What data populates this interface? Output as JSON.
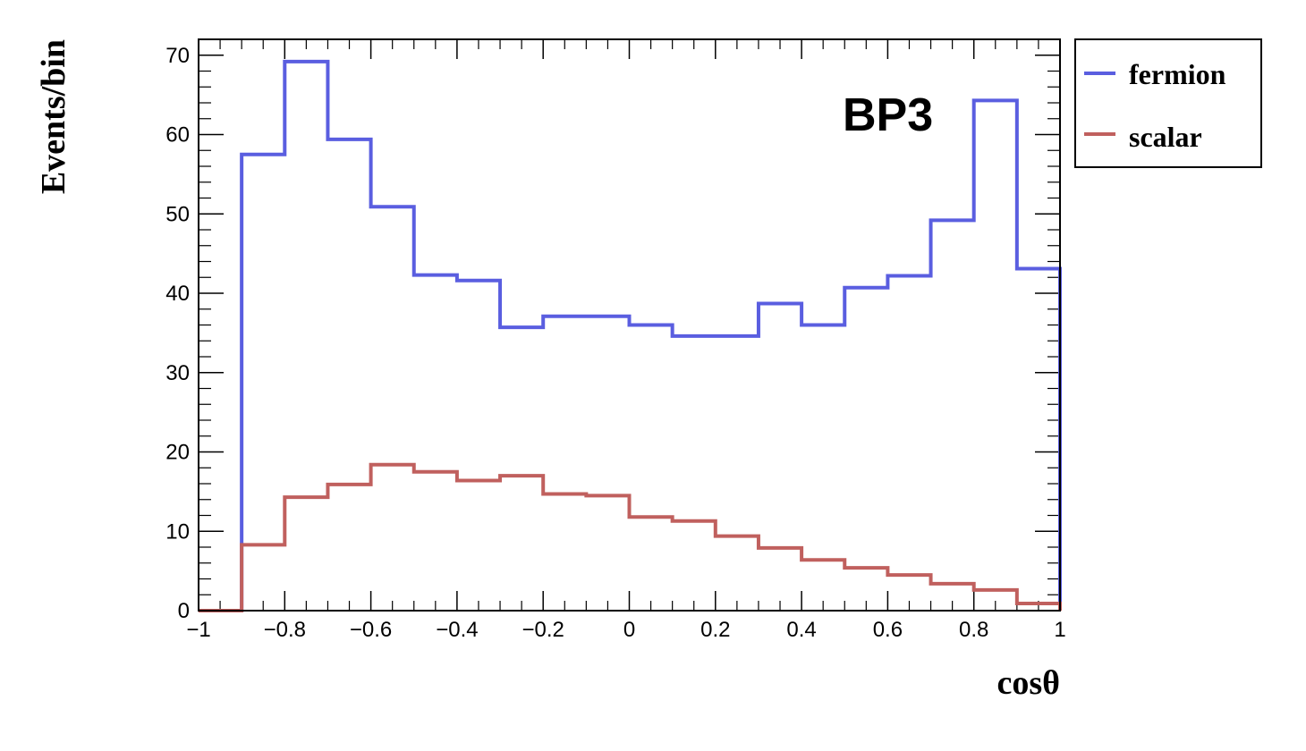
{
  "chart_data": {
    "type": "line",
    "step": true,
    "title": "",
    "annotation": "BP3",
    "xlabel": "cosθ",
    "ylabel": "Events/bin",
    "xlim": [
      -1,
      1
    ],
    "ylim": [
      0,
      72
    ],
    "x_ticks": [
      -1,
      -0.8,
      -0.6,
      -0.4,
      -0.2,
      0,
      0.2,
      0.4,
      0.6,
      0.8,
      1
    ],
    "x_tick_labels": [
      "−1",
      "−0.8",
      "−0.6",
      "−0.4",
      "−0.2",
      "0",
      "0.2",
      "0.4",
      "0.6",
      "0.8",
      "1"
    ],
    "y_ticks": [
      0,
      10,
      20,
      30,
      40,
      50,
      60,
      70
    ],
    "y_tick_labels": [
      "0",
      "10",
      "20",
      "30",
      "40",
      "50",
      "60",
      "70"
    ],
    "bin_edges": [
      -1,
      -0.9,
      -0.8,
      -0.7,
      -0.6,
      -0.5,
      -0.4,
      -0.3,
      -0.2,
      -0.1,
      0,
      0.1,
      0.2,
      0.3,
      0.4,
      0.5,
      0.6,
      0.7,
      0.8,
      0.9,
      1
    ],
    "series": [
      {
        "name": "fermion",
        "color": "#5a5ee0",
        "values": [
          0,
          57.5,
          69.2,
          59.4,
          50.9,
          42.3,
          41.6,
          35.7,
          37.1,
          37.1,
          36.0,
          34.6,
          34.6,
          38.7,
          36.0,
          40.7,
          42.2,
          49.2,
          64.3,
          43.1
        ]
      },
      {
        "name": "scalar",
        "color": "#c0605e",
        "values": [
          0,
          8.3,
          14.3,
          15.9,
          18.4,
          17.5,
          16.4,
          17.0,
          14.7,
          14.5,
          11.8,
          11.3,
          9.4,
          7.9,
          6.4,
          5.4,
          4.5,
          3.4,
          2.6,
          0.9
        ]
      }
    ],
    "legend": {
      "position": "top-right-outside"
    },
    "grid": false
  }
}
